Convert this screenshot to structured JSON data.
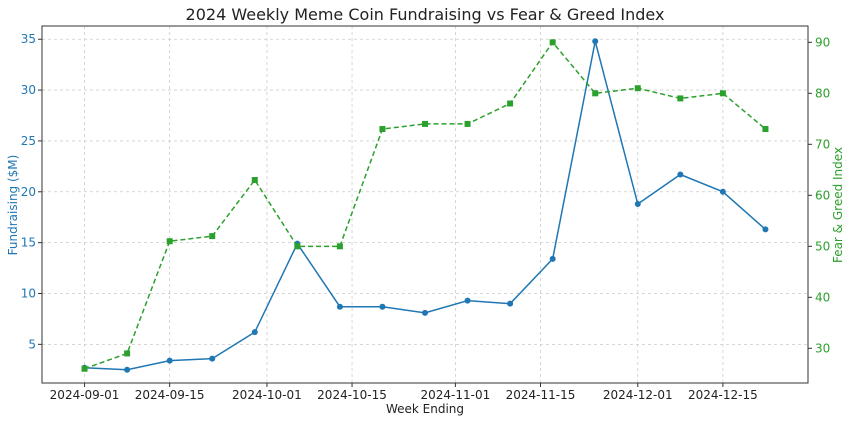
{
  "chart_data": {
    "type": "line",
    "title": "2024 Weekly Meme Coin Fundraising vs Fear & Greed Index",
    "xlabel": "Week Ending",
    "ylabel_left": "Fundraising ($M)",
    "ylabel_right": "Fear & Greed Index",
    "x": [
      "2024-09-01",
      "2024-09-08",
      "2024-09-15",
      "2024-09-22",
      "2024-09-29",
      "2024-10-06",
      "2024-10-13",
      "2024-10-20",
      "2024-10-27",
      "2024-11-03",
      "2024-11-10",
      "2024-11-17",
      "2024-11-24",
      "2024-12-01",
      "2024-12-08",
      "2024-12-15",
      "2024-12-22"
    ],
    "x_ticks": [
      "2024-09-01",
      "2024-09-15",
      "2024-10-01",
      "2024-10-15",
      "2024-11-01",
      "2024-11-15",
      "2024-12-01",
      "2024-12-15"
    ],
    "xlim": [
      "2024-08-25",
      "2024-12-29"
    ],
    "grid": true,
    "series": [
      {
        "name": "Fundraising ($M)",
        "axis": "left",
        "color": "#1f77b4",
        "style": "solid",
        "marker": "circle",
        "values": [
          2.7,
          2.5,
          3.4,
          3.6,
          6.2,
          14.9,
          8.7,
          8.7,
          8.1,
          9.3,
          9.0,
          13.4,
          34.8,
          18.8,
          21.7,
          20.0,
          16.3
        ]
      },
      {
        "name": "Fear & Greed Index",
        "axis": "right",
        "color": "#2ca02c",
        "style": "dashed",
        "marker": "square",
        "values": [
          26,
          29,
          51,
          52,
          63,
          50,
          50,
          73,
          74,
          74,
          78,
          90,
          80,
          81,
          79,
          80,
          73
        ]
      }
    ],
    "ylim_left": [
      1.2,
      36.3
    ],
    "yticks_left": [
      5,
      10,
      15,
      20,
      25,
      30,
      35
    ],
    "ylim_right": [
      23.2,
      93.2
    ],
    "yticks_right": [
      30,
      40,
      50,
      60,
      70,
      80,
      90
    ]
  }
}
